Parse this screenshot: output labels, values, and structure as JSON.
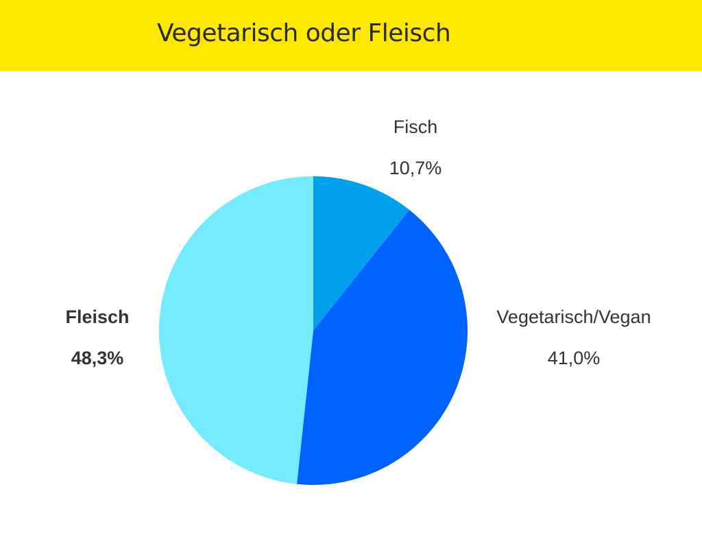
{
  "header": {
    "title": "Vegetarisch oder Fleisch",
    "background": "#FFE800"
  },
  "chart_data": {
    "type": "pie",
    "title": "Vegetarisch oder Fleisch",
    "start": "12 o'clock",
    "direction": "clockwise",
    "slices": [
      {
        "name": "Fisch",
        "value": 10.7,
        "label": "10,7%",
        "color": "#00A0EE",
        "emphasis": false,
        "label_side": "top"
      },
      {
        "name": "Vegetarisch/Vegan",
        "value": 41.0,
        "label": "41,0%",
        "color": "#0063FF",
        "emphasis": false,
        "label_side": "right"
      },
      {
        "name": "Fleisch",
        "value": 48.3,
        "label": "48,3%",
        "color": "#74EBFF",
        "emphasis": true,
        "label_side": "left"
      }
    ]
  }
}
